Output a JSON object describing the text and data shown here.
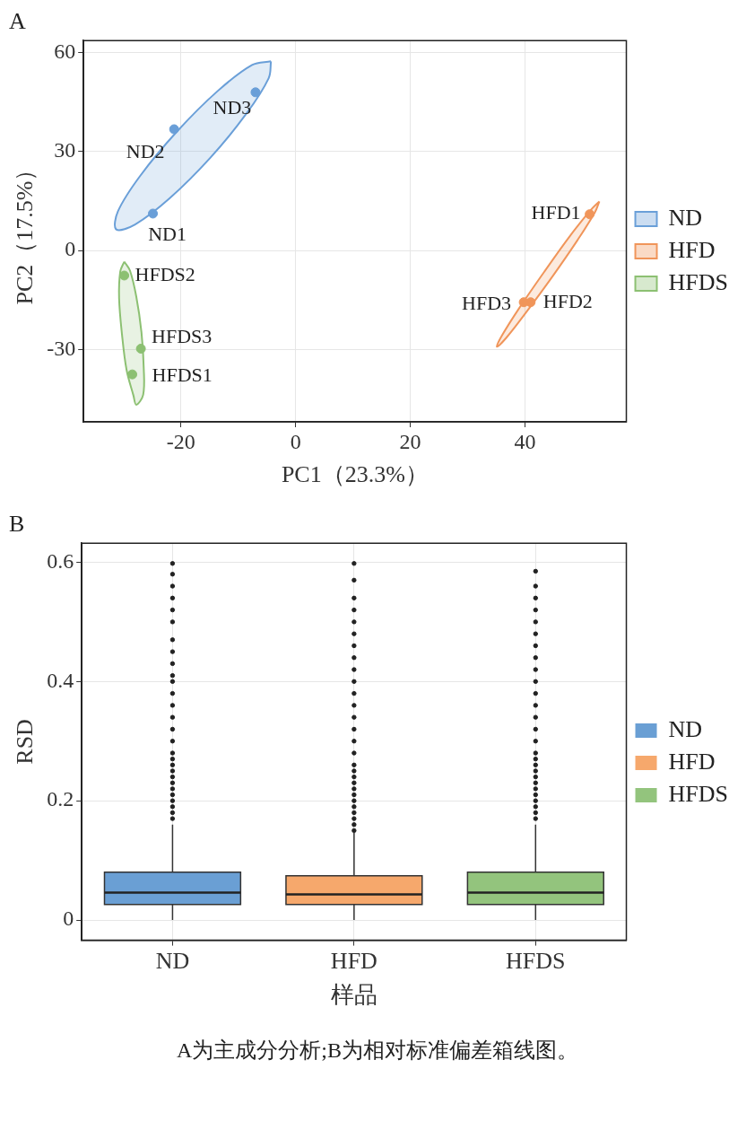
{
  "chart_data": [
    {
      "type": "scatter",
      "title": "A",
      "xlabel": "PC1（23.3%）",
      "ylabel": "PC2（17.5%）",
      "xlim": [
        -37,
        57.7
      ],
      "ylim": [
        -52,
        63.7
      ],
      "xticks": [
        -20,
        0,
        20,
        40
      ],
      "yticks": [
        -30,
        0,
        30,
        60
      ],
      "grid": true,
      "legend": "right",
      "marker": "circle",
      "series": [
        {
          "type": "area",
          "marker": "none",
          "color": "#6a9fd8",
          "x": [
            -4.3,
            -4.7,
            -8.6,
            -14.9,
            -22.0,
            -28.0,
            -31.3,
            -31.0,
            -27.1,
            -20.7,
            -13.6,
            -7.6,
            -4.3
          ],
          "values": [
            57.4,
            52.3,
            41.5,
            28.1,
            15.8,
            7.9,
            6.4,
            11.9,
            22.7,
            36.1,
            48.4,
            56.3,
            57.4
          ]
        },
        {
          "type": "area",
          "marker": "none",
          "color": "#f0955a",
          "x": [
            53.0,
            52.2,
            49.2,
            44.8,
            40.2,
            36.7,
            35.1,
            36.0,
            39.0,
            43.4,
            47.9,
            51.5,
            53.0
          ],
          "values": [
            14.9,
            11.5,
            3.2,
            -7.9,
            -18.8,
            -26.6,
            -29.2,
            -25.8,
            -17.5,
            -6.4,
            4.5,
            12.3,
            14.9
          ]
        },
        {
          "type": "area",
          "marker": "none",
          "color": "#8cc072",
          "x": [
            -29.9,
            -28.9,
            -27.8,
            -26.9,
            -26.5,
            -26.6,
            -27.8,
            -28.3,
            -29.5,
            -30.3,
            -30.8,
            -30.6,
            -29.9
          ],
          "values": [
            -3.4,
            -6.1,
            -14.0,
            -24.8,
            -35.7,
            -43.8,
            -46.8,
            -44.0,
            -36.2,
            -25.4,
            -14.5,
            -6.4,
            -3.4
          ]
        },
        {
          "name": "ND",
          "color": "#6a9fd8",
          "x": [
            -24.9,
            -21.2,
            -7
          ],
          "values": [
            11.2,
            36.8,
            48
          ]
        },
        {
          "name": "HFD",
          "color": "#f0955a",
          "x": [
            51.3,
            41,
            39.8
          ],
          "values": [
            11,
            -15.7,
            -15.7
          ]
        },
        {
          "name": "HFDS",
          "color": "#8cc072",
          "x": [
            -29.9,
            -27,
            -28.5
          ],
          "values": [
            -7.6,
            -29.8,
            -37.6
          ]
        }
      ],
      "annotations": [
        {
          "text": "ND1",
          "x": -24.9,
          "y": 11.2
        },
        {
          "text": "ND2",
          "x": -21.2,
          "y": 36.8
        },
        {
          "text": "ND3",
          "x": -7,
          "y": 48
        },
        {
          "text": "HFD1",
          "x": 51.3,
          "y": 11
        },
        {
          "text": "HFD2",
          "x": 41,
          "y": -15.7
        },
        {
          "text": "HFD3",
          "x": 39.8,
          "y": -15.7
        },
        {
          "text": "HFDS2",
          "x": -29.9,
          "y": -7.6
        },
        {
          "text": "HFDS3",
          "x": -27,
          "y": -29.8
        },
        {
          "text": "HFDS1",
          "x": -28.5,
          "y": -37.6
        }
      ]
    },
    {
      "type": "box",
      "title": "B",
      "xlabel": "样品",
      "ylabel": "RSD",
      "categories": [
        "ND",
        "HFD",
        "HFDS"
      ],
      "ylim": [
        -0.034,
        0.632
      ],
      "yticks": [
        0,
        0.2,
        0.4,
        0.6
      ],
      "grid": true,
      "legend": "right",
      "series": [
        {
          "name": "ND",
          "color": "#6a9fd4",
          "boxes": [
            {
              "low": 0,
              "q1": 0.026,
              "median": 0.046,
              "q3": 0.08,
              "high": 0.16,
              "outliers": [
                0.17,
                0.18,
                0.19,
                0.2,
                0.21,
                0.22,
                0.23,
                0.24,
                0.25,
                0.26,
                0.27,
                0.28,
                0.3,
                0.32,
                0.34,
                0.36,
                0.38,
                0.4,
                0.41,
                0.43,
                0.45,
                0.47,
                0.5,
                0.52,
                0.54,
                0.56,
                0.58,
                0.598
              ]
            },
            null,
            null
          ]
        },
        {
          "name": "HFD",
          "color": "#f6a86c",
          "boxes": [
            null,
            {
              "low": 0,
              "q1": 0.026,
              "median": 0.043,
              "q3": 0.074,
              "high": 0.146,
              "outliers": [
                0.15,
                0.16,
                0.17,
                0.18,
                0.19,
                0.2,
                0.21,
                0.22,
                0.23,
                0.24,
                0.25,
                0.26,
                0.28,
                0.3,
                0.32,
                0.34,
                0.36,
                0.38,
                0.4,
                0.42,
                0.44,
                0.46,
                0.48,
                0.5,
                0.52,
                0.54,
                0.57,
                0.598
              ]
            },
            null
          ]
        },
        {
          "name": "HFDS",
          "color": "#93c47d",
          "boxes": [
            null,
            null,
            {
              "low": 0,
              "q1": 0.026,
              "median": 0.046,
              "q3": 0.08,
              "high": 0.16,
              "outliers": [
                0.17,
                0.18,
                0.19,
                0.2,
                0.21,
                0.22,
                0.23,
                0.24,
                0.25,
                0.26,
                0.27,
                0.28,
                0.3,
                0.32,
                0.34,
                0.36,
                0.38,
                0.4,
                0.42,
                0.44,
                0.46,
                0.48,
                0.5,
                0.52,
                0.54,
                0.56,
                0.585
              ]
            }
          ]
        }
      ],
      "annotations": [
        "A为主成分分析;B为相对标准偏差箱线图。"
      ]
    }
  ]
}
